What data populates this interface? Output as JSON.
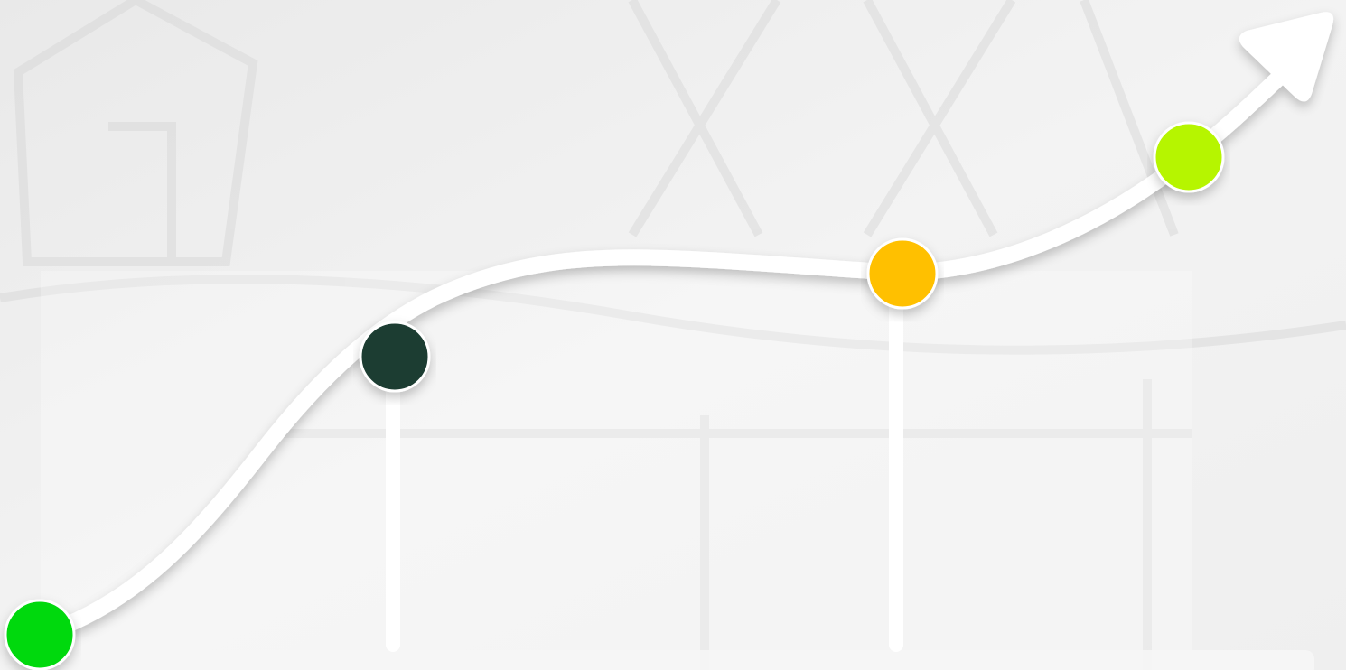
{
  "nodes": [
    {
      "color": "#00d90f"
    },
    {
      "color": "#1a3d32"
    },
    {
      "color": "#ffc000"
    },
    {
      "color": "#b6f500"
    }
  ]
}
